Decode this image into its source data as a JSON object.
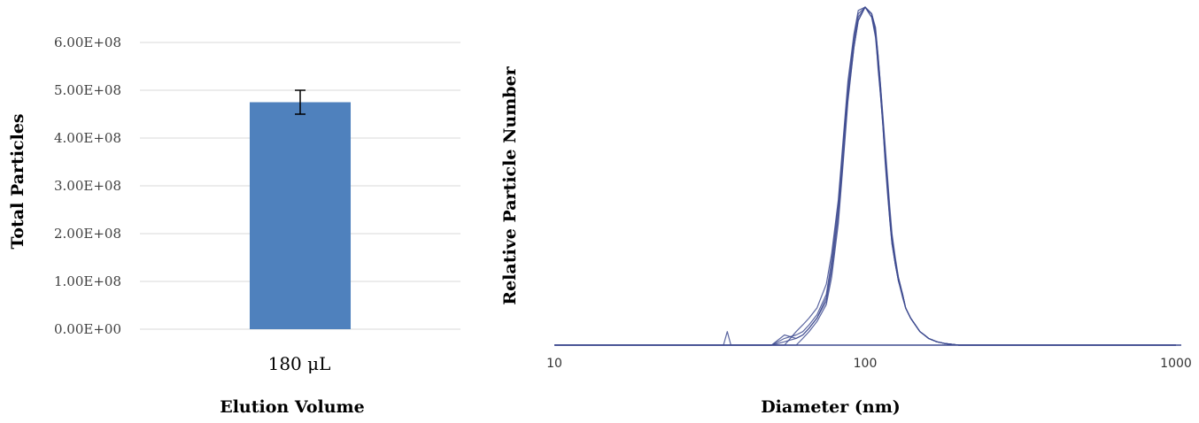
{
  "chart_data": [
    {
      "type": "bar",
      "categories": [
        "180 μL"
      ],
      "values": [
        475000000
      ],
      "error": [
        25000000
      ],
      "xlabel": "Elution Volume",
      "ylabel": "Total Particles",
      "ylim": [
        0,
        600000000
      ],
      "yticks": [
        "0.00E+00",
        "1.00E+08",
        "2.00E+08",
        "3.00E+08",
        "4.00E+08",
        "5.00E+08",
        "6.00E+08"
      ],
      "grid": true,
      "color": "#4f81bd"
    },
    {
      "type": "line",
      "xlabel": "Diameter (nm)",
      "ylabel": "Relative Particle Number",
      "xscale": "log",
      "xlim": [
        10,
        1000
      ],
      "xticks": [
        "10",
        "100",
        "1000"
      ],
      "ylim": [
        0,
        1
      ],
      "grid": false,
      "color": "#3d4a8f",
      "series": [
        {
          "x": [
            10,
            17,
            18,
            19,
            40,
            42,
            50,
            55,
            60,
            63,
            66,
            70,
            75,
            78,
            82,
            85,
            88,
            92,
            95,
            100,
            105,
            108,
            110,
            112,
            114,
            116,
            118,
            120,
            122,
            125,
            128,
            132,
            135,
            140,
            145,
            150,
            155,
            160,
            170,
            180,
            200,
            250,
            1000
          ],
          "y": [
            0,
            0,
            0,
            0,
            0,
            0,
            0,
            0.01,
            0.02,
            0.03,
            0.05,
            0.08,
            0.14,
            0.23,
            0.4,
            0.58,
            0.75,
            0.9,
            0.97,
            1.0,
            0.98,
            0.93,
            0.82,
            0.74,
            0.65,
            0.54,
            0.45,
            0.37,
            0.3,
            0.24,
            0.19,
            0.15,
            0.11,
            0.08,
            0.06,
            0.04,
            0.03,
            0.02,
            0.01,
            0.005,
            0,
            0,
            0
          ]
        },
        {
          "x": [
            10,
            50,
            55,
            60,
            63,
            66,
            70,
            75,
            78,
            82,
            85,
            88,
            92,
            95,
            100,
            105,
            108,
            110,
            112,
            114,
            116,
            118,
            120,
            122,
            125,
            128,
            132,
            135,
            140,
            145,
            150,
            155,
            160,
            170,
            180,
            200,
            1000
          ],
          "y": [
            0,
            0,
            0.02,
            0.03,
            0.04,
            0.06,
            0.09,
            0.15,
            0.25,
            0.42,
            0.6,
            0.76,
            0.91,
            0.98,
            1.0,
            0.97,
            0.92,
            0.84,
            0.75,
            0.66,
            0.56,
            0.47,
            0.38,
            0.31,
            0.24,
            0.19,
            0.14,
            0.11,
            0.08,
            0.06,
            0.04,
            0.03,
            0.02,
            0.01,
            0.005,
            0,
            0
          ]
        },
        {
          "x": [
            10,
            35,
            36,
            37,
            55,
            60,
            63,
            66,
            70,
            75,
            78,
            82,
            85,
            88,
            92,
            95,
            100,
            105,
            108,
            110,
            112,
            114,
            116,
            118,
            120,
            122,
            125,
            128,
            132,
            135,
            140,
            145,
            150,
            155,
            160,
            170,
            180,
            200,
            1000
          ],
          "y": [
            0,
            0,
            0.04,
            0,
            0,
            0.04,
            0.06,
            0.08,
            0.11,
            0.18,
            0.27,
            0.43,
            0.61,
            0.78,
            0.92,
            0.99,
            1.0,
            0.97,
            0.91,
            0.83,
            0.74,
            0.65,
            0.55,
            0.46,
            0.37,
            0.3,
            0.24,
            0.19,
            0.15,
            0.11,
            0.08,
            0.06,
            0.04,
            0.03,
            0.02,
            0.01,
            0.005,
            0,
            0
          ]
        },
        {
          "x": [
            10,
            50,
            55,
            60,
            63,
            66,
            70,
            75,
            78,
            82,
            85,
            88,
            92,
            95,
            100,
            105,
            108,
            110,
            112,
            114,
            116,
            118,
            120,
            122,
            125,
            128,
            132,
            135,
            140,
            145,
            150,
            155,
            160,
            170,
            180,
            200,
            1000
          ],
          "y": [
            0,
            0,
            0.03,
            0.02,
            0.03,
            0.05,
            0.08,
            0.13,
            0.22,
            0.38,
            0.55,
            0.73,
            0.88,
            0.96,
            1.0,
            0.98,
            0.93,
            0.86,
            0.77,
            0.67,
            0.57,
            0.48,
            0.39,
            0.32,
            0.25,
            0.2,
            0.15,
            0.11,
            0.08,
            0.06,
            0.04,
            0.03,
            0.02,
            0.01,
            0.005,
            0,
            0
          ]
        },
        {
          "x": [
            10,
            60,
            63,
            66,
            70,
            75,
            78,
            82,
            85,
            88,
            92,
            95,
            100,
            105,
            108,
            110,
            112,
            114,
            116,
            118,
            120,
            122,
            125,
            128,
            132,
            135,
            140,
            145,
            150,
            155,
            160,
            170,
            180,
            200,
            1000
          ],
          "y": [
            0,
            0,
            0.02,
            0.04,
            0.07,
            0.12,
            0.2,
            0.36,
            0.54,
            0.72,
            0.88,
            0.96,
            1.0,
            0.98,
            0.94,
            0.86,
            0.77,
            0.68,
            0.59,
            0.5,
            0.41,
            0.33,
            0.26,
            0.2,
            0.15,
            0.11,
            0.08,
            0.06,
            0.04,
            0.03,
            0.02,
            0.01,
            0.005,
            0,
            0
          ]
        }
      ]
    }
  ]
}
